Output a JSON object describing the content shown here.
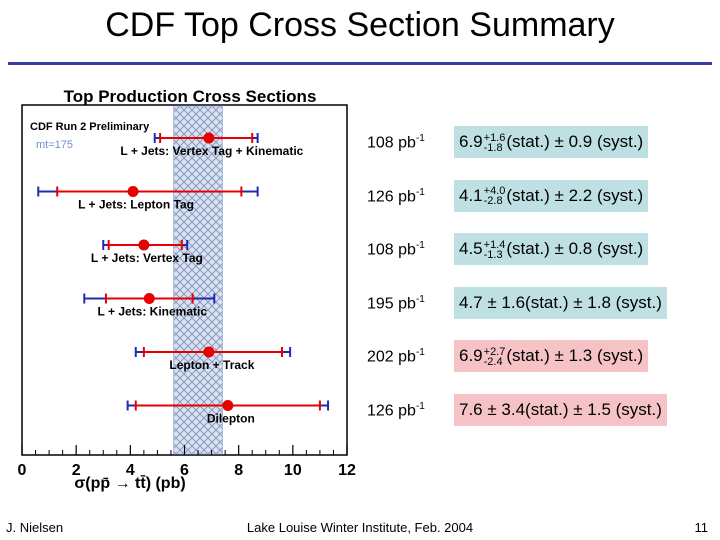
{
  "slide": {
    "title": "CDF Top Cross Section Summary",
    "footer_left": "J. Nielsen",
    "footer_center": "Lake Louise Winter Institute, Feb. 2004",
    "page_number": "11"
  },
  "chart_data": {
    "type": "scatter",
    "title": "Top Production Cross Sections",
    "annotations": [
      "CDF Run 2 Preliminary",
      "mt=175"
    ],
    "xlabel": "σ(pp̄ → tt̄) (pb)",
    "xlim": [
      0,
      12
    ],
    "xticks": [
      "0",
      "2",
      "4",
      "6",
      "8",
      "10",
      "12"
    ],
    "theory_band": [
      5.6,
      7.4
    ],
    "measurements": [
      {
        "label": "L + Jets: Vertex Tag + Kinematic",
        "value": 6.9,
        "stat_low": 5.1,
        "stat_high": 8.5,
        "tot_low": 4.9,
        "tot_high": 8.7
      },
      {
        "label": "L + Jets: Lepton Tag",
        "value": 4.1,
        "stat_low": 1.3,
        "stat_high": 8.1,
        "tot_low": 0.6,
        "tot_high": 8.7
      },
      {
        "label": "L + Jets: Vertex Tag",
        "value": 4.5,
        "stat_low": 3.2,
        "stat_high": 5.9,
        "tot_low": 3.0,
        "tot_high": 6.1
      },
      {
        "label": "L + Jets: Kinematic",
        "value": 4.7,
        "stat_low": 3.1,
        "stat_high": 6.3,
        "tot_low": 2.3,
        "tot_high": 7.1
      },
      {
        "label": "Lepton + Track",
        "value": 6.9,
        "stat_low": 4.5,
        "stat_high": 9.6,
        "tot_low": 4.2,
        "tot_high": 9.9
      },
      {
        "label": "Dilepton",
        "value": 7.6,
        "stat_low": 4.2,
        "stat_high": 11.0,
        "tot_low": 3.9,
        "tot_high": 11.3
      }
    ]
  },
  "results": [
    {
      "lumi": "108 pb",
      "lumi_exp": "-1",
      "central": "6.9",
      "plus": "+1.6",
      "minus": "-1.8",
      "tail": "(stat.) ± 0.9 (syst.)",
      "text": "",
      "color": "#bfe0e3"
    },
    {
      "lumi": "126 pb",
      "lumi_exp": "-1",
      "central": "4.1",
      "plus": "+4.0",
      "minus": "-2.8",
      "tail": "(stat.) ± 2.2 (syst.)",
      "text": "",
      "color": "#bfe0e3"
    },
    {
      "lumi": "108 pb",
      "lumi_exp": "-1",
      "central": "4.5",
      "plus": "+1.4",
      "minus": "-1.3",
      "tail": "(stat.) ± 0.8 (syst.)",
      "text": "",
      "color": "#bfe0e3"
    },
    {
      "lumi": "195 pb",
      "lumi_exp": "-1",
      "central": "",
      "plus": "",
      "minus": "",
      "tail": "",
      "text": "4.7 ± 1.6(stat.) ± 1.8 (syst.)",
      "color": "#bfe0e3"
    },
    {
      "lumi": "202 pb",
      "lumi_exp": "-1",
      "central": "6.9",
      "plus": "+2.7",
      "minus": "-2.4",
      "tail": "(stat.) ± 1.3 (syst.)",
      "text": "",
      "color": "#f5c3c6"
    },
    {
      "lumi": "126 pb",
      "lumi_exp": "-1",
      "central": "",
      "plus": "",
      "minus": "",
      "tail": "",
      "text": "7.6 ± 3.4(stat.) ± 1.5 (syst.)",
      "color": "#f5c3c6"
    }
  ],
  "colors": {
    "marker": "#e60000",
    "error_bar": "#1f2bb0",
    "band_fill": "#c9d5ea",
    "rule": "#3c3ca6"
  }
}
